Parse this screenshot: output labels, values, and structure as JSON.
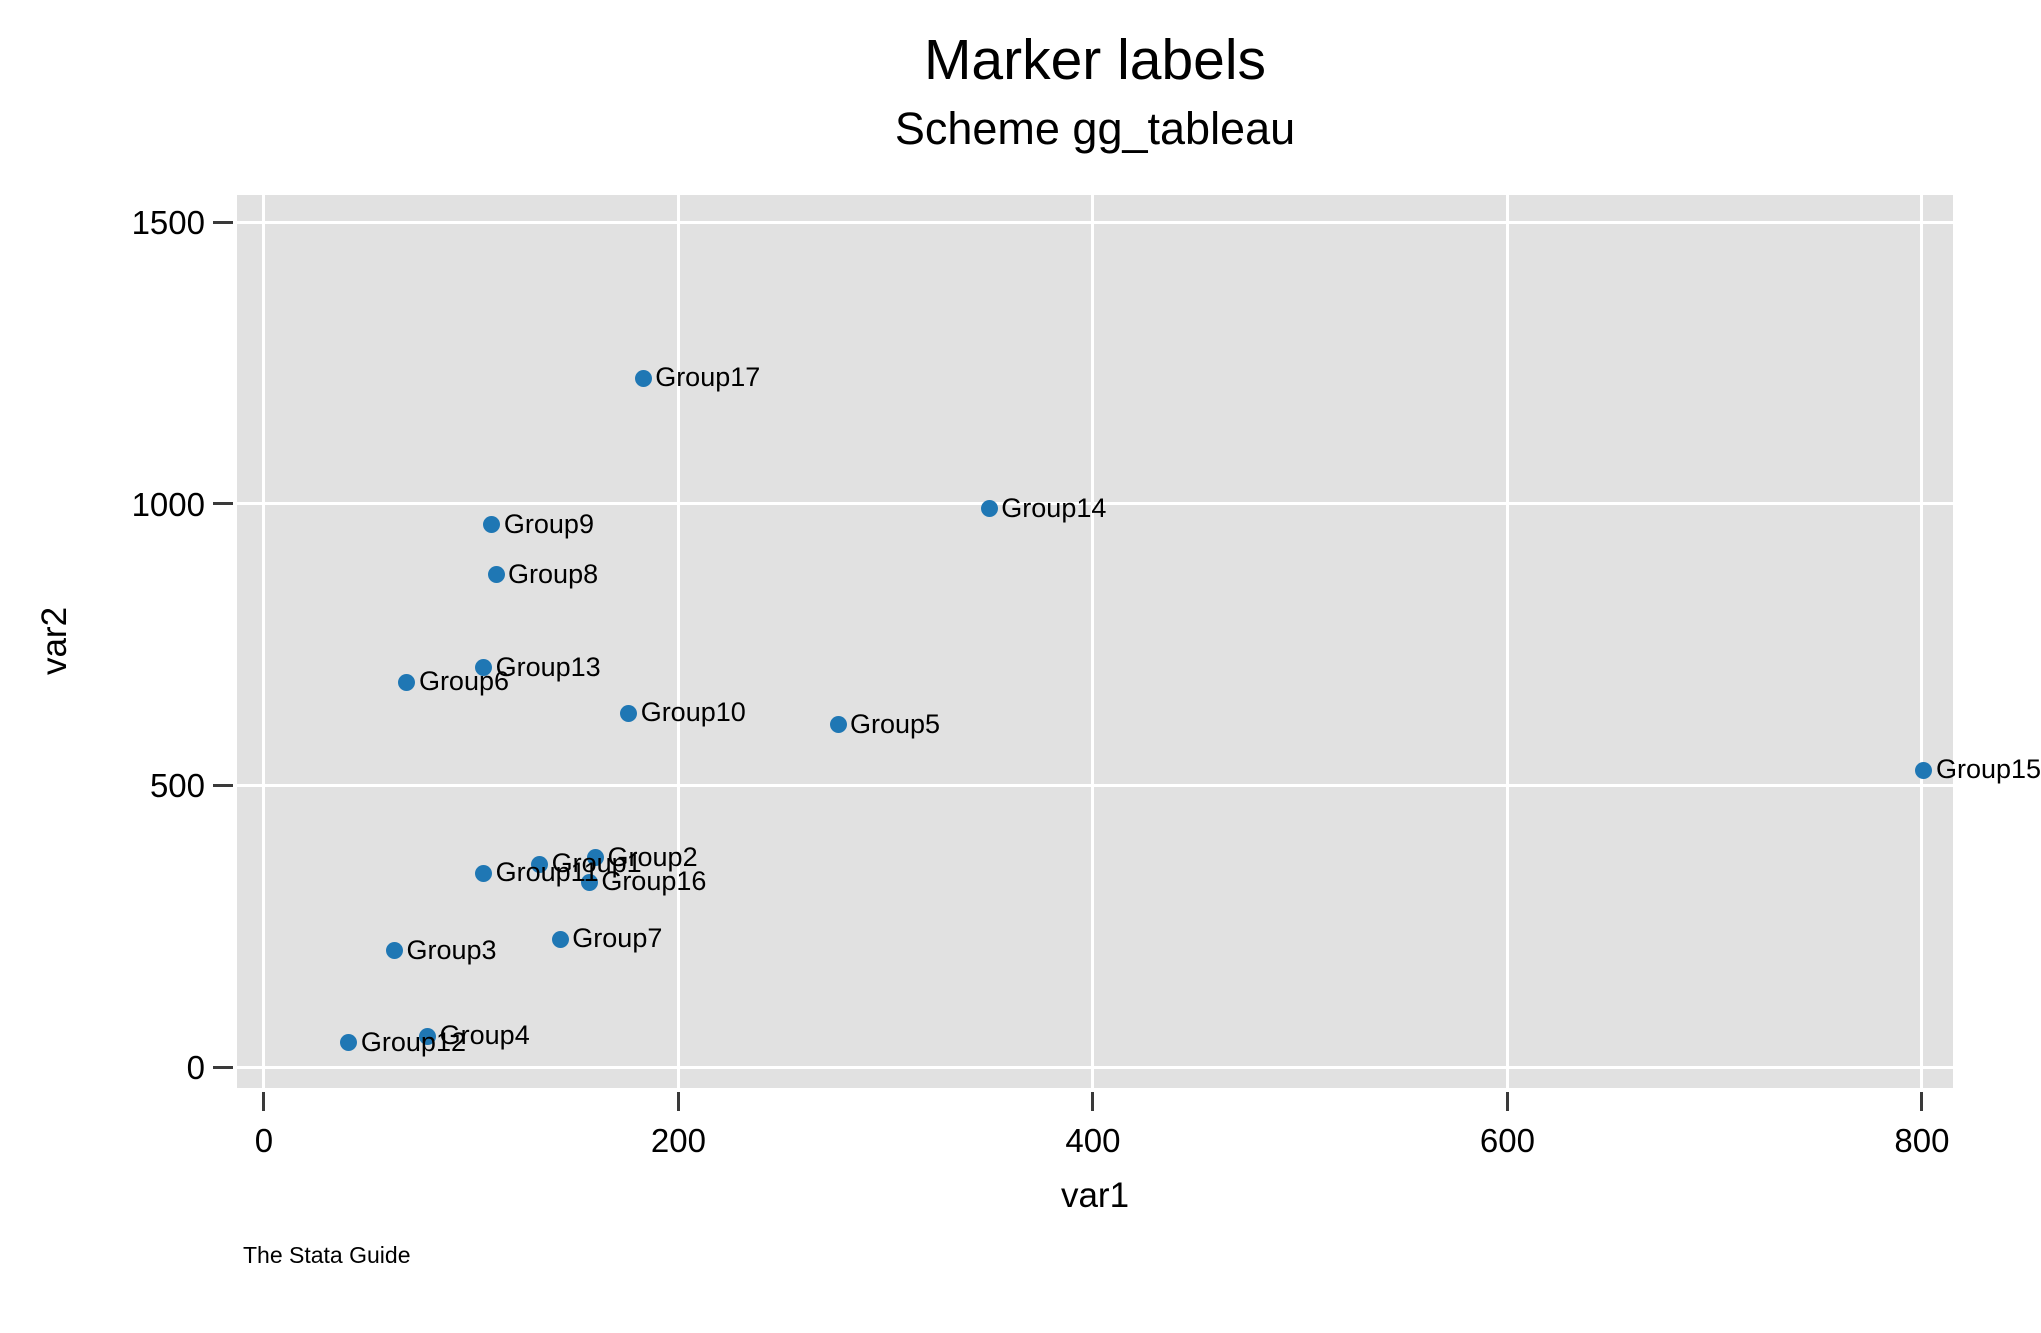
{
  "title": "Marker labels",
  "subtitle": "Scheme gg_tableau",
  "footer": "The Stata Guide",
  "axis": {
    "x_title": "var1",
    "y_title": "var2"
  },
  "colors": {
    "marker": "#1F77B4",
    "plot_background": "#E1E1E1",
    "gridline": "#FFFFFF"
  },
  "chart_data": {
    "type": "scatter",
    "title": "Marker labels",
    "subtitle": "Scheme gg_tableau",
    "xlabel": "var1",
    "ylabel": "var2",
    "xlim": [
      -13,
      815
    ],
    "ylim": [
      -37,
      1548
    ],
    "xticks": [
      0,
      200,
      400,
      600,
      800
    ],
    "yticks": [
      0,
      500,
      1000,
      1500
    ],
    "grid": true,
    "legend_position": "none",
    "marker_color": "#1F77B4",
    "points": [
      {
        "label": "Group1",
        "x": 133,
        "y": 360
      },
      {
        "label": "Group2",
        "x": 160,
        "y": 372
      },
      {
        "label": "Group3",
        "x": 63,
        "y": 207
      },
      {
        "label": "Group4",
        "x": 79,
        "y": 55
      },
      {
        "label": "Group5",
        "x": 277,
        "y": 608
      },
      {
        "label": "Group6",
        "x": 69,
        "y": 683
      },
      {
        "label": "Group7",
        "x": 143,
        "y": 227
      },
      {
        "label": "Group8",
        "x": 112,
        "y": 874
      },
      {
        "label": "Group9",
        "x": 110,
        "y": 963
      },
      {
        "label": "Group10",
        "x": 176,
        "y": 628
      },
      {
        "label": "Group11",
        "x": 106,
        "y": 344
      },
      {
        "label": "Group12",
        "x": 41,
        "y": 43
      },
      {
        "label": "Group13",
        "x": 106,
        "y": 709
      },
      {
        "label": "Group14",
        "x": 350,
        "y": 991
      },
      {
        "label": "Group15",
        "x": 801,
        "y": 527
      },
      {
        "label": "Group16",
        "x": 157,
        "y": 328
      },
      {
        "label": "Group17",
        "x": 183,
        "y": 1223
      }
    ]
  }
}
